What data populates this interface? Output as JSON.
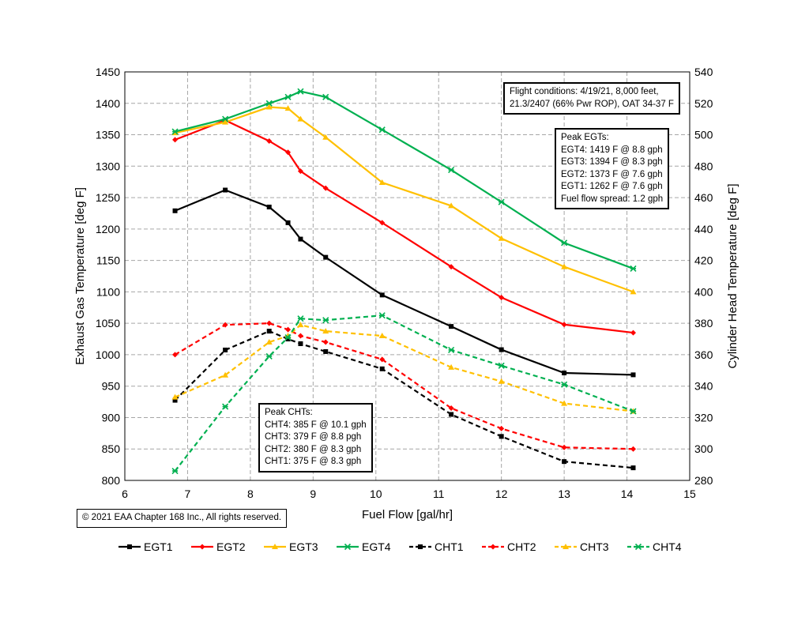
{
  "chart_data": {
    "type": "line",
    "xlabel": "Fuel Flow [gal/hr]",
    "ylabel": "Exhaust Gas Temperature [deg F]",
    "y2label": "Cylinder Head Temperature [deg F]",
    "xlim": [
      6,
      15
    ],
    "ylim": [
      800,
      1450
    ],
    "y2lim": [
      280,
      540
    ],
    "xticks": [
      6,
      7,
      8,
      9,
      10,
      11,
      12,
      13,
      14,
      15
    ],
    "yticks": [
      800,
      850,
      900,
      950,
      1000,
      1050,
      1100,
      1150,
      1200,
      1250,
      1300,
      1350,
      1400,
      1450
    ],
    "y2ticks": [
      280,
      300,
      320,
      340,
      360,
      380,
      400,
      420,
      440,
      460,
      480,
      500,
      520,
      540
    ],
    "grid": true,
    "legend_position": "bottom",
    "x": [
      6.8,
      7.6,
      8.3,
      8.6,
      8.8,
      9.2,
      10.1,
      11.2,
      12,
      13,
      14.1
    ],
    "series": [
      {
        "name": "EGT1",
        "axis": "left",
        "color": "#000000",
        "dash": false,
        "marker": "square",
        "values": [
          1229,
          1262,
          1235,
          1210,
          1184,
          1155,
          1095,
          1045,
          1008,
          971,
          968
        ]
      },
      {
        "name": "EGT2",
        "axis": "left",
        "color": "#ff0000",
        "dash": false,
        "marker": "diamond",
        "values": [
          1342,
          1373,
          1340,
          1322,
          1292,
          1265,
          1210,
          1140,
          1091,
          1048,
          1035
        ]
      },
      {
        "name": "EGT3",
        "axis": "left",
        "color": "#ffc000",
        "dash": false,
        "marker": "triangle",
        "values": [
          1353,
          1370,
          1394,
          1392,
          1375,
          1346,
          1274,
          1237,
          1185,
          1140,
          1100
        ]
      },
      {
        "name": "EGT4",
        "axis": "left",
        "color": "#00b050",
        "dash": false,
        "marker": "x",
        "values": [
          1355,
          1375,
          1400,
          1410,
          1419,
          1410,
          1358,
          1294,
          1243,
          1178,
          1137
        ]
      },
      {
        "name": "CHT1",
        "axis": "right",
        "color": "#000000",
        "dash": true,
        "marker": "square",
        "values": [
          331,
          363,
          375,
          370,
          367,
          362,
          351,
          322,
          308,
          292,
          288
        ]
      },
      {
        "name": "CHT2",
        "axis": "right",
        "color": "#ff0000",
        "dash": true,
        "marker": "diamond",
        "values": [
          360,
          379,
          380,
          376,
          372,
          368,
          357,
          326,
          313,
          301,
          300
        ]
      },
      {
        "name": "CHT3",
        "axis": "right",
        "color": "#ffc000",
        "dash": true,
        "marker": "triangle",
        "values": [
          333,
          347,
          368,
          372,
          379,
          375,
          372,
          352,
          343,
          329,
          324
        ]
      },
      {
        "name": "CHT4",
        "axis": "right",
        "color": "#00b050",
        "dash": true,
        "marker": "x",
        "values": [
          286,
          327,
          359,
          371,
          383,
          382,
          385,
          363,
          353,
          341,
          324
        ]
      }
    ],
    "annotations": {
      "flight_conditions": [
        "Flight conditions: 4/19/21, 8,000 feet,",
        "21.3/2407 (66% Pwr ROP), OAT 34-37 F"
      ],
      "peak_egts": [
        "Peak EGTs:",
        "EGT4: 1419 F @ 8.8 gph",
        "EGT3: 1394 F @ 8.3 pgh",
        "EGT2: 1373 F @ 7.6 gph",
        "EGT1: 1262 F @ 7.6 gph",
        "Fuel flow spread: 1.2 gph"
      ],
      "peak_chts": [
        "Peak CHTs:",
        "CHT4: 385 F @ 10.1 gph",
        "CHT3: 379 F @ 8.8 pgh",
        "CHT2: 380 F @ 8.3 gph",
        "CHT1: 375 F @ 8.3 gph"
      ],
      "copyright": "© 2021 EAA Chapter 168 Inc., All rights reserved."
    }
  }
}
